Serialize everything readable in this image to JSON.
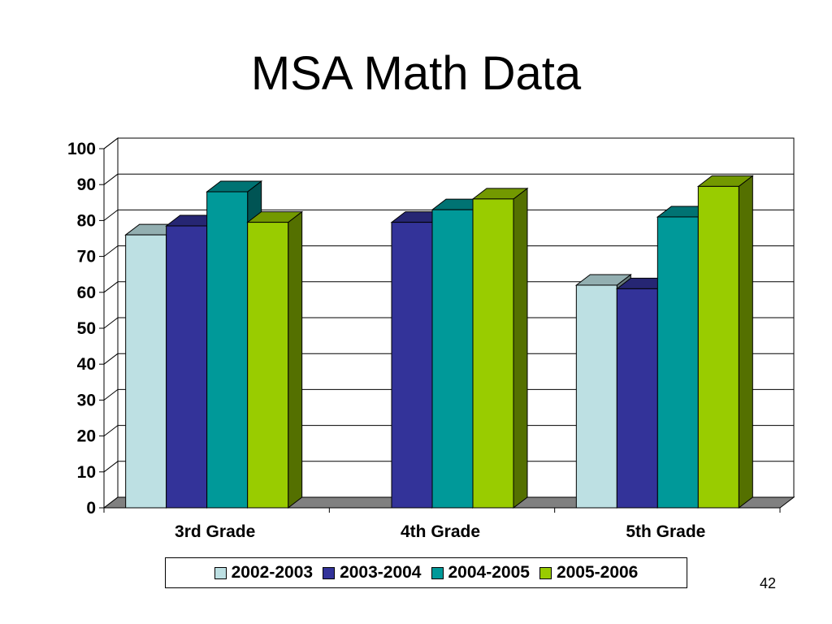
{
  "slide": {
    "title": "MSA Math Data",
    "page_number": "42"
  },
  "colors": {
    "2002-2003": "#bde0e3",
    "2003-2004": "#333399",
    "2004-2005": "#009999",
    "2005-2006": "#99cc00",
    "floor": "#808080",
    "grid": "#000000"
  },
  "chart_data": {
    "type": "bar",
    "title": "",
    "xlabel": "",
    "ylabel": "",
    "ylim": [
      0,
      100
    ],
    "yticks": [
      0,
      10,
      20,
      30,
      40,
      50,
      60,
      70,
      80,
      90,
      100
    ],
    "grid": true,
    "legend_position": "bottom",
    "categories": [
      "3rd Grade",
      "4th Grade",
      "5th Grade"
    ],
    "series": [
      {
        "name": "2002-2003",
        "values": [
          76,
          null,
          62
        ]
      },
      {
        "name": "2003-2004",
        "values": [
          78.5,
          79.5,
          61
        ]
      },
      {
        "name": "2004-2005",
        "values": [
          88,
          83,
          81
        ]
      },
      {
        "name": "2005-2006",
        "values": [
          79.5,
          86,
          89.5
        ]
      }
    ]
  }
}
